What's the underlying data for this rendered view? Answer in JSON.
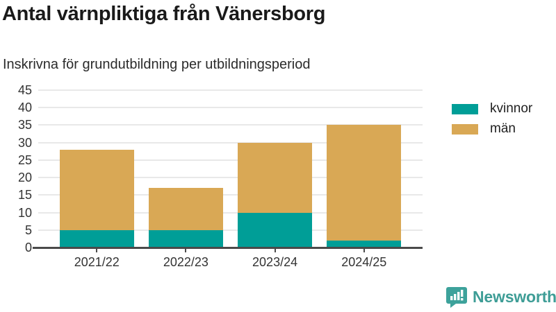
{
  "header": {
    "title": "Antal värnpliktiga från Vänersborg",
    "subtitle": "Inskrivna för grundutbildning per utbildningsperiod"
  },
  "chart_data": {
    "type": "bar",
    "stacked": true,
    "title": "Antal värnpliktiga från Vänersborg",
    "subtitle": "Inskrivna för grundutbildning per utbildningsperiod",
    "categories": [
      "2021/22",
      "2022/23",
      "2023/24",
      "2024/25"
    ],
    "series": [
      {
        "name": "kvinnor",
        "color": "#009e97",
        "values": [
          5,
          5,
          10,
          2
        ]
      },
      {
        "name": "män",
        "color": "#d9a855",
        "values": [
          23,
          12,
          20,
          33
        ]
      }
    ],
    "stack_totals": [
      28,
      17,
      30,
      35
    ],
    "xlabel": "",
    "ylabel": "",
    "ylim": [
      0,
      45
    ],
    "yticks": [
      0,
      5,
      10,
      15,
      20,
      25,
      30,
      35,
      40,
      45
    ],
    "grid": true,
    "legend_position": "top-right"
  },
  "legend": {
    "items": [
      {
        "label": "kvinnor",
        "color": "#009e97"
      },
      {
        "label": "män",
        "color": "#d9a855"
      }
    ]
  },
  "footer": {
    "brand": "Newsworthy",
    "brand_color": "#3e9d96",
    "logo_bubble_color": "#3da29b"
  },
  "colors": {
    "gridline": "#e8e8e8",
    "axis": "#4a4a4a",
    "title_text": "#1a1a1a",
    "tick_text": "#333333"
  }
}
